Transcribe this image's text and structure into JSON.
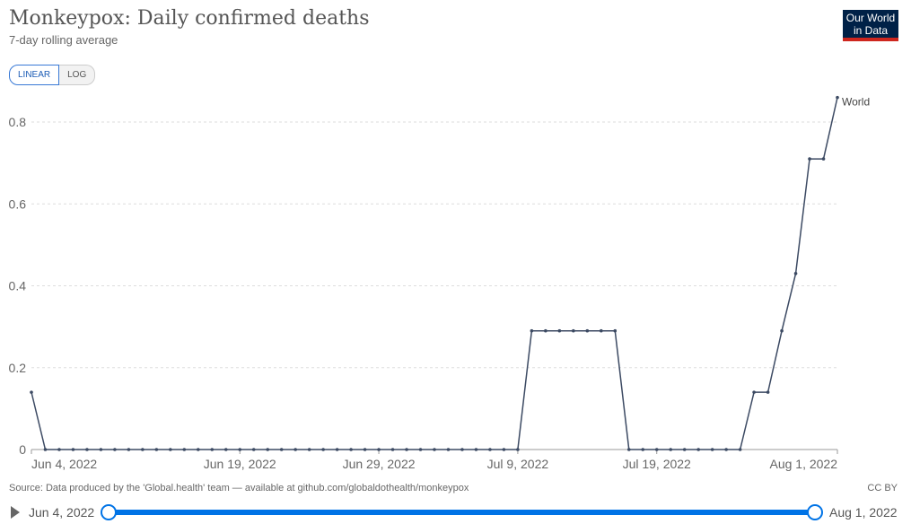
{
  "header": {
    "title": "Monkeypox: Daily confirmed deaths",
    "subtitle": "7-day rolling average",
    "logo": "Our World in Data"
  },
  "toggles": {
    "linear": "LINEAR",
    "log": "LOG"
  },
  "footer": {
    "source": "Source: Data produced by the 'Global.health' team — available at github.com/globaldothealth/monkeypox",
    "license": "CC BY"
  },
  "timeline": {
    "start": "Jun 4, 2022",
    "end": "Aug 1, 2022"
  },
  "colors": {
    "line": "#3c4a63",
    "accent": "#0073e6"
  },
  "chart_data": {
    "type": "line",
    "title": "Monkeypox: Daily confirmed deaths",
    "subtitle": "7-day rolling average",
    "ylim": [
      0,
      0.8
    ],
    "yticks": [
      0,
      0.2,
      0.4,
      0.6,
      0.8
    ],
    "ytick_labels": [
      "0",
      "0.2",
      "0.4",
      "0.6",
      "0.8"
    ],
    "xticks": [
      {
        "day": 0,
        "label": "Jun 4, 2022"
      },
      {
        "day": 15,
        "label": "Jun 19, 2022"
      },
      {
        "day": 25,
        "label": "Jun 29, 2022"
      },
      {
        "day": 35,
        "label": "Jul 9, 2022"
      },
      {
        "day": 45,
        "label": "Jul 19, 2022"
      },
      {
        "day": 58,
        "label": "Aug 1, 2022"
      }
    ],
    "x_start": "2022-06-04",
    "x_end": "2022-08-01",
    "grid": true,
    "series": [
      {
        "name": "World",
        "values": [
          0.14,
          0,
          0,
          0,
          0,
          0,
          0,
          0,
          0,
          0,
          0,
          0,
          0,
          0,
          0,
          0,
          0,
          0,
          0,
          0,
          0,
          0,
          0,
          0,
          0,
          0,
          0,
          0,
          0,
          0,
          0,
          0,
          0,
          0,
          0,
          0,
          0.29,
          0.29,
          0.29,
          0.29,
          0.29,
          0.29,
          0.29,
          0,
          0,
          0,
          0,
          0,
          0,
          0,
          0,
          0,
          0.14,
          0.14,
          0.29,
          0.43,
          0.71,
          0.71,
          0.86
        ]
      }
    ]
  }
}
